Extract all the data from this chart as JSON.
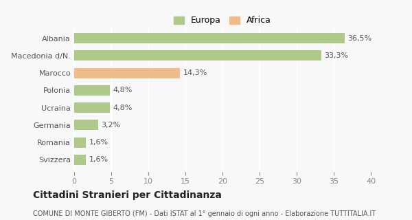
{
  "categories": [
    "Svizzera",
    "Romania",
    "Germania",
    "Ucraina",
    "Polonia",
    "Marocco",
    "Macedonia d/N.",
    "Albania"
  ],
  "values": [
    1.6,
    1.6,
    3.2,
    4.8,
    4.8,
    14.3,
    33.3,
    36.5
  ],
  "labels": [
    "1,6%",
    "1,6%",
    "3,2%",
    "4,8%",
    "4,8%",
    "14,3%",
    "33,3%",
    "36,5%"
  ],
  "colors": [
    "#aec98a",
    "#aec98a",
    "#aec98a",
    "#aec98a",
    "#aec98a",
    "#f0bc8a",
    "#aec98a",
    "#aec98a"
  ],
  "legend": [
    {
      "label": "Europa",
      "color": "#aec98a"
    },
    {
      "label": "Africa",
      "color": "#f0bc8a"
    }
  ],
  "xlim": [
    0,
    40
  ],
  "xticks": [
    0,
    5,
    10,
    15,
    20,
    25,
    30,
    35,
    40
  ],
  "title": "Cittadini Stranieri per Cittadinanza",
  "subtitle": "COMUNE DI MONTE GIBERTO (FM) - Dati ISTAT al 1° gennaio di ogni anno - Elaborazione TUTTITALIA.IT",
  "background_color": "#f8f8f8",
  "bar_height": 0.6
}
